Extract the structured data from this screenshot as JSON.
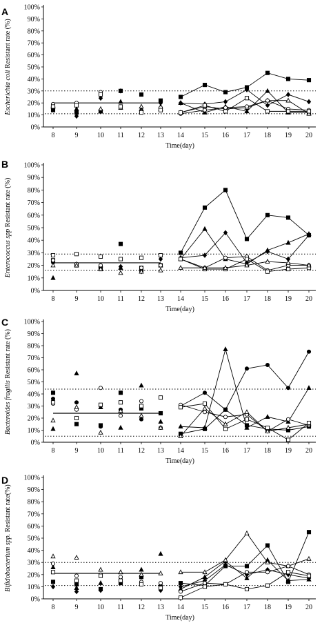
{
  "chart_data": [
    {
      "panel": "A",
      "type": "scatter",
      "ylabel_italic": "Escherichia coli",
      "ylabel_rest": " Resistant rate (%)",
      "xlabel": "Time(day)",
      "x_ticks": [
        8,
        9,
        10,
        11,
        12,
        13,
        14,
        15,
        16,
        17,
        18,
        19,
        20
      ],
      "y_ticks": [
        "0%",
        "10%",
        "20%",
        "30%",
        "40%",
        "50%",
        "60%",
        "70%",
        "80%",
        "90%",
        "100%"
      ],
      "ylim": [
        0,
        100
      ],
      "baseline_mean": 20,
      "ref_lines": [
        11,
        30
      ],
      "series": [
        {
          "marker": "filled-square",
          "x": [
            8,
            9,
            10,
            11,
            12,
            13,
            14,
            15,
            16,
            17,
            18,
            19,
            20
          ],
          "y": [
            14,
            12,
            13,
            30,
            27,
            22,
            25,
            35,
            29,
            33,
            45,
            40,
            39
          ]
        },
        {
          "marker": "filled-diamond",
          "x": [
            8,
            9,
            10,
            11,
            12,
            13,
            14,
            15,
            16,
            17,
            18,
            19,
            20
          ],
          "y": [
            16,
            9,
            24,
            30,
            13,
            20,
            20,
            19,
            21,
            31,
            18,
            27,
            21
          ]
        },
        {
          "marker": "filled-triangle",
          "x": [
            8,
            9,
            10,
            11,
            12,
            13,
            14,
            15,
            16,
            17,
            18,
            19,
            20
          ],
          "y": [
            17,
            15,
            13,
            21,
            15,
            17,
            20,
            12,
            17,
            13,
            30,
            12,
            12
          ]
        },
        {
          "marker": "open-triangle",
          "x": [
            8,
            9,
            10,
            11,
            12,
            13,
            14,
            15,
            16,
            17,
            18,
            19,
            20
          ],
          "y": [
            18,
            18,
            15,
            16,
            17,
            15,
            12,
            17,
            15,
            16,
            22,
            22,
            11
          ]
        },
        {
          "marker": "open-circle",
          "x": [
            8,
            9,
            10,
            11,
            12,
            13,
            14,
            15,
            16,
            17,
            18,
            19,
            20
          ],
          "y": [
            19,
            20,
            29,
            17,
            13,
            16,
            11,
            14,
            16,
            17,
            22,
            15,
            14
          ]
        },
        {
          "marker": "open-square",
          "x": [
            8,
            9,
            10,
            11,
            12,
            13,
            14,
            15,
            16,
            17,
            18,
            19,
            20
          ],
          "y": [
            17,
            18,
            27,
            17,
            12,
            14,
            12,
            18,
            13,
            24,
            13,
            13,
            13
          ]
        }
      ]
    },
    {
      "panel": "B",
      "type": "scatter",
      "ylabel_italic": "Enterococcus spp",
      "ylabel_rest": "  Resistant rate (%)",
      "xlabel": "Time(day)",
      "x_ticks": [
        8,
        9,
        10,
        11,
        12,
        13,
        14,
        15,
        16,
        17,
        18,
        19,
        20
      ],
      "y_ticks": [
        "0%",
        "10%",
        "20%",
        "30%",
        "40%",
        "50%",
        "60%",
        "70%",
        "80%",
        "90%",
        "100%"
      ],
      "ylim": [
        0,
        100
      ],
      "baseline_mean": 22,
      "ref_lines": [
        16,
        29
      ],
      "series": [
        {
          "marker": "filled-square",
          "x": [
            8,
            9,
            10,
            11,
            12,
            13,
            14,
            15,
            16,
            17,
            18,
            19,
            20
          ],
          "y": [
            24,
            20,
            17,
            37,
            18,
            20,
            30,
            66,
            80,
            41,
            60,
            58,
            44
          ]
        },
        {
          "marker": "filled-triangle",
          "x": [
            8,
            9,
            10,
            11,
            12,
            13,
            14,
            15,
            16,
            17,
            18,
            19,
            20
          ],
          "y": [
            10,
            20,
            20,
            18,
            17,
            20,
            25,
            49,
            25,
            21,
            32,
            38,
            45
          ]
        },
        {
          "marker": "filled-diamond",
          "x": [
            8,
            9,
            10,
            11,
            12,
            13,
            14,
            15,
            16,
            17,
            18,
            19,
            20
          ],
          "y": [
            22,
            21,
            19,
            19,
            15,
            25,
            26,
            28,
            46,
            22,
            31,
            25,
            44
          ]
        },
        {
          "marker": "open-circle",
          "x": [
            8,
            9,
            10,
            11,
            12,
            13,
            14,
            15,
            16,
            17,
            18,
            19,
            20
          ],
          "y": [
            24,
            21,
            20,
            25,
            18,
            20,
            25,
            18,
            26,
            27,
            16,
            20,
            20
          ]
        },
        {
          "marker": "open-square",
          "x": [
            8,
            9,
            10,
            11,
            12,
            13,
            14,
            15,
            16,
            17,
            18,
            19,
            20
          ],
          "y": [
            28,
            29,
            27,
            25,
            26,
            28,
            25,
            17,
            17,
            25,
            15,
            17,
            18
          ]
        },
        {
          "marker": "open-triangle",
          "x": [
            8,
            9,
            10,
            11,
            12,
            13,
            14,
            15,
            16,
            17,
            18,
            19,
            20
          ],
          "y": [
            20,
            20,
            17,
            14,
            15,
            16,
            18,
            18,
            18,
            20,
            23,
            22,
            20
          ]
        }
      ]
    },
    {
      "panel": "C",
      "type": "scatter",
      "ylabel_italic": "Bacteroides fragilis",
      "ylabel_rest": "  Resistant rate (%)",
      "xlabel": "Time(day)",
      "x_ticks": [
        8,
        9,
        10,
        11,
        12,
        13,
        14,
        15,
        16,
        17,
        18,
        19,
        20
      ],
      "y_ticks": [
        "0%",
        "10%",
        "20%",
        "30%",
        "40%",
        "50%",
        "60%",
        "70%",
        "80%",
        "90%",
        "100%"
      ],
      "ylim": [
        0,
        100
      ],
      "baseline_mean": 24,
      "ref_lines": [
        5,
        44
      ],
      "series": [
        {
          "marker": "filled-circle",
          "x": [
            8,
            9,
            10,
            11,
            12,
            13,
            14,
            15,
            16,
            17,
            18,
            19,
            20
          ],
          "y": [
            36,
            33,
            13,
            27,
            19,
            24,
            30,
            41,
            27,
            61,
            64,
            45,
            75
          ]
        },
        {
          "marker": "filled-triangle",
          "x": [
            8,
            9,
            10,
            11,
            12,
            13,
            14,
            15,
            16,
            17,
            18,
            19,
            20
          ],
          "y": [
            11,
            57,
            29,
            12,
            47,
            17,
            13,
            12,
            77,
            12,
            21,
            17,
            45
          ]
        },
        {
          "marker": "filled-square",
          "x": [
            8,
            9,
            10,
            11,
            12,
            13,
            14,
            15,
            16,
            17,
            18,
            19,
            20
          ],
          "y": [
            41,
            15,
            14,
            41,
            28,
            24,
            7,
            11,
            27,
            14,
            11,
            10,
            13
          ]
        },
        {
          "marker": "open-circle",
          "x": [
            8,
            9,
            10,
            11,
            12,
            13,
            14,
            15,
            16,
            17,
            18,
            19,
            20
          ],
          "y": [
            32,
            27,
            45,
            22,
            34,
            12,
            31,
            25,
            21,
            23,
            9,
            19,
            14
          ]
        },
        {
          "marker": "open-triangle",
          "x": [
            8,
            9,
            10,
            11,
            12,
            13,
            14,
            15,
            16,
            17,
            18,
            19,
            20
          ],
          "y": [
            18,
            29,
            8,
            26,
            22,
            12,
            5,
            28,
            15,
            25,
            9,
            12,
            15
          ]
        },
        {
          "marker": "open-square",
          "x": [
            8,
            9,
            10,
            11,
            12,
            13,
            14,
            15,
            16,
            17,
            18,
            19,
            20
          ],
          "y": [
            33,
            20,
            31,
            33,
            30,
            37,
            29,
            32,
            11,
            19,
            12,
            2,
            16
          ]
        }
      ]
    },
    {
      "panel": "D",
      "type": "scatter",
      "ylabel_italic": "Bifidobacterium spp.",
      "ylabel_rest": "  Resistant rate(%)",
      "xlabel": "Time(day)",
      "x_ticks": [
        8,
        9,
        10,
        11,
        12,
        13,
        14,
        15,
        16,
        17,
        18,
        19,
        20
      ],
      "y_ticks": [
        "0%",
        "10%",
        "20%",
        "30%",
        "40%",
        "50%",
        "60%",
        "70%",
        "80%",
        "90%",
        "100%"
      ],
      "ylim": [
        0,
        100
      ],
      "baseline_mean": 21,
      "ref_lines": [
        11,
        30
      ],
      "series": [
        {
          "marker": "filled-square",
          "x": [
            8,
            9,
            10,
            11,
            12,
            13,
            14,
            15,
            16,
            17,
            18,
            19,
            20
          ],
          "y": [
            14,
            12,
            8,
            13,
            18,
            10,
            13,
            11,
            27,
            27,
            44,
            14,
            55
          ]
        },
        {
          "marker": "filled-triangle",
          "x": [
            8,
            9,
            10,
            11,
            12,
            13,
            14,
            15,
            16,
            17,
            18,
            19,
            20
          ],
          "y": [
            26,
            9,
            13,
            22,
            24,
            37,
            8,
            18,
            31,
            17,
            32,
            15,
            16
          ]
        },
        {
          "marker": "filled-diamond",
          "x": [
            8,
            9,
            10,
            11,
            12,
            13,
            14,
            15,
            16,
            17,
            18,
            19,
            20
          ],
          "y": [
            10,
            6,
            7,
            16,
            13,
            7,
            10,
            15,
            28,
            20,
            24,
            20,
            17
          ]
        },
        {
          "marker": "open-triangle",
          "x": [
            8,
            9,
            10,
            11,
            12,
            13,
            14,
            15,
            16,
            17,
            18,
            19,
            20
          ],
          "y": [
            35,
            34,
            24,
            22,
            20,
            21,
            22,
            22,
            32,
            54,
            30,
            27,
            33
          ]
        },
        {
          "marker": "open-circle",
          "x": [
            8,
            9,
            10,
            11,
            12,
            13,
            14,
            15,
            16,
            17,
            18,
            19,
            20
          ],
          "y": [
            29,
            19,
            20,
            18,
            14,
            13,
            6,
            13,
            12,
            22,
            22,
            27,
            20
          ]
        },
        {
          "marker": "open-square",
          "x": [
            8,
            9,
            10,
            11,
            12,
            13,
            14,
            15,
            16,
            17,
            18,
            19,
            20
          ],
          "y": [
            22,
            15,
            19,
            15,
            12,
            9,
            1,
            10,
            12,
            8,
            11,
            22,
            19
          ]
        }
      ]
    }
  ]
}
